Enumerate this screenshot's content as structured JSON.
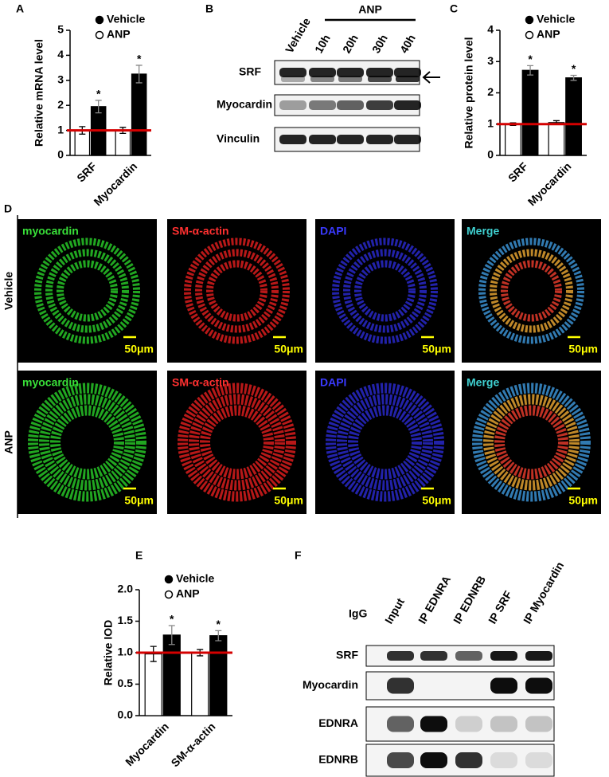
{
  "panel_labels": [
    "A",
    "B",
    "C",
    "D",
    "E",
    "F"
  ],
  "chart_data": [
    {
      "type": "bar",
      "ylabel": "Relative mRNA level",
      "categories": [
        "SRF",
        "Myocardin"
      ],
      "series": [
        {
          "name": "Vehicle",
          "color": "#ffffff",
          "values": [
            1.0,
            1.0
          ],
          "errors": [
            0.15,
            0.12
          ]
        },
        {
          "name": "ANP",
          "color": "#000000",
          "values": [
            1.95,
            3.25
          ],
          "errors": [
            0.25,
            0.35
          ]
        }
      ],
      "significance": [
        "*",
        "*"
      ],
      "reference_line": 1,
      "reference_color": "#d40000",
      "ylim": [
        0,
        5
      ],
      "yticks": [
        0,
        1,
        2,
        3,
        4,
        5
      ]
    },
    {
      "type": "bar",
      "ylabel": "Relative protein level",
      "categories": [
        "SRF",
        "Myocardin"
      ],
      "series": [
        {
          "name": "Vehicle",
          "color": "#ffffff",
          "values": [
            1.0,
            1.05
          ],
          "errors": [
            0.04,
            0.06
          ]
        },
        {
          "name": "ANP",
          "color": "#000000",
          "values": [
            2.72,
            2.48
          ],
          "errors": [
            0.15,
            0.08
          ]
        }
      ],
      "significance": [
        "*",
        "*"
      ],
      "reference_line": 1,
      "reference_color": "#d40000",
      "ylim": [
        0,
        4
      ],
      "yticks": [
        0,
        1,
        2,
        3,
        4
      ]
    },
    {
      "type": "bar",
      "ylabel": "Relative IOD",
      "categories": [
        "Myocardin",
        "SM-α-actin"
      ],
      "series": [
        {
          "name": "Vehicle",
          "color": "#ffffff",
          "values": [
            0.98,
            1.0
          ],
          "errors": [
            0.12,
            0.05
          ]
        },
        {
          "name": "ANP",
          "color": "#000000",
          "values": [
            1.28,
            1.27
          ],
          "errors": [
            0.15,
            0.08
          ]
        }
      ],
      "significance": [
        "*",
        "*"
      ],
      "reference_line": 1,
      "reference_color": "#d40000",
      "ylim": [
        0,
        2
      ],
      "yticks": [
        {
          "value": 0,
          "label": "0.0"
        },
        0.5,
        {
          "value": 1,
          "label": "1.0"
        },
        1.5,
        {
          "value": 2,
          "label": "2.0"
        }
      ]
    }
  ],
  "blot_b": {
    "group": "ANP",
    "columns": [
      "Vehicle",
      "10h",
      "20h",
      "30h",
      "40h"
    ],
    "rows": [
      "SRF",
      "Myocardin",
      "Vinculin"
    ]
  },
  "panel_d": {
    "rows": [
      "Vehicle",
      "ANP"
    ],
    "columns": [
      "myocardin",
      "SM-α-actin",
      "DAPI",
      "Merge"
    ],
    "scale_bar": "50μm"
  },
  "blot_f": {
    "columns": [
      "IgG",
      "Input",
      "IP EDNRA",
      "IP EDNRB",
      "IP SRF",
      "IP Myocardin"
    ],
    "rows": [
      "SRF",
      "Myocardin",
      "EDNRA",
      "EDNRB"
    ]
  }
}
